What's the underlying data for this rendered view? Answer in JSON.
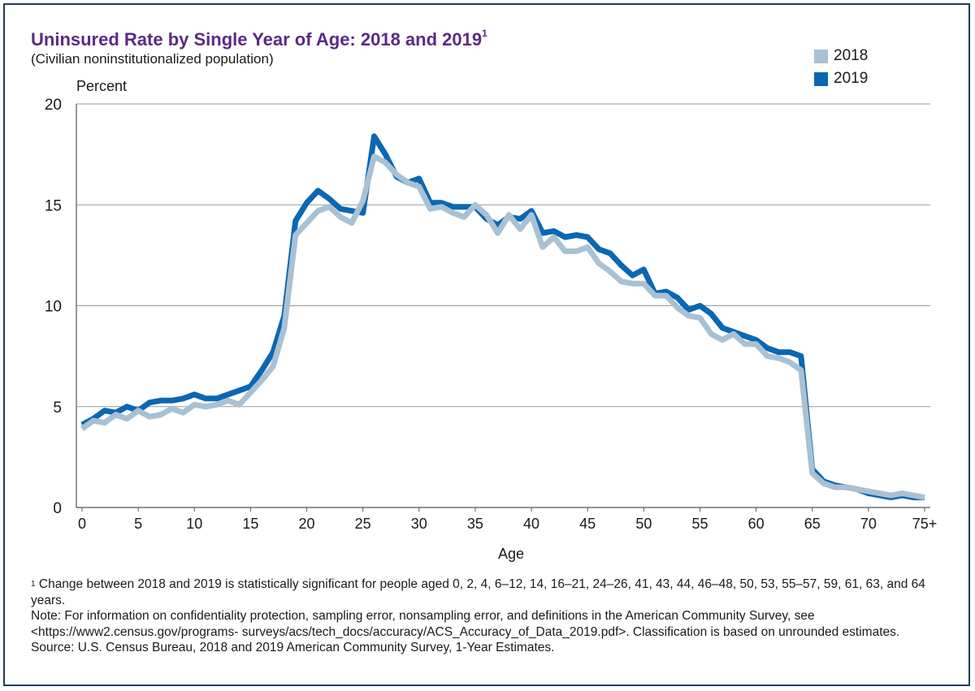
{
  "header": {
    "title": "Uninsured Rate by Single Year of Age: 2018 and 2019",
    "title_superscript": "1",
    "subtitle": "(Civilian noninstitutionalized population)"
  },
  "legend": {
    "items": [
      {
        "label": "2018",
        "color": "#a9c1d3"
      },
      {
        "label": "2019",
        "color": "#0a67b3"
      }
    ]
  },
  "chart_data": {
    "type": "line",
    "ylabel": "Percent",
    "xlabel": "Age",
    "ylim": [
      0,
      20
    ],
    "xlim": [
      0,
      75
    ],
    "yticks": [
      0,
      5,
      10,
      15,
      20
    ],
    "xticks": [
      {
        "value": 0,
        "label": "0"
      },
      {
        "value": 5,
        "label": "5"
      },
      {
        "value": 10,
        "label": "10"
      },
      {
        "value": 15,
        "label": "15"
      },
      {
        "value": 20,
        "label": "20"
      },
      {
        "value": 25,
        "label": "25"
      },
      {
        "value": 30,
        "label": "30"
      },
      {
        "value": 35,
        "label": "35"
      },
      {
        "value": 40,
        "label": "40"
      },
      {
        "value": 45,
        "label": "45"
      },
      {
        "value": 50,
        "label": "50"
      },
      {
        "value": 55,
        "label": "55"
      },
      {
        "value": 60,
        "label": "60"
      },
      {
        "value": 65,
        "label": "65"
      },
      {
        "value": 70,
        "label": "70"
      },
      {
        "value": 75,
        "label": "75+"
      }
    ],
    "grid": true,
    "legend_position": "top-right",
    "x": [
      0,
      1,
      2,
      3,
      4,
      5,
      6,
      7,
      8,
      9,
      10,
      11,
      12,
      13,
      14,
      15,
      16,
      17,
      18,
      19,
      20,
      21,
      22,
      23,
      24,
      25,
      26,
      27,
      28,
      29,
      30,
      31,
      32,
      33,
      34,
      35,
      36,
      37,
      38,
      39,
      40,
      41,
      42,
      43,
      44,
      45,
      46,
      47,
      48,
      49,
      50,
      51,
      52,
      53,
      54,
      55,
      56,
      57,
      58,
      59,
      60,
      61,
      62,
      63,
      64,
      65,
      66,
      67,
      68,
      69,
      70,
      71,
      72,
      73,
      74,
      75
    ],
    "series": [
      {
        "name": "2019",
        "color": "#0a67b3",
        "values": [
          4.1,
          4.4,
          4.8,
          4.7,
          5.0,
          4.8,
          5.2,
          5.3,
          5.3,
          5.4,
          5.6,
          5.4,
          5.4,
          5.6,
          5.8,
          6.0,
          6.8,
          7.7,
          9.5,
          14.2,
          15.1,
          15.7,
          15.3,
          14.8,
          14.7,
          14.6,
          18.4,
          17.5,
          16.4,
          16.1,
          16.3,
          15.1,
          15.1,
          14.9,
          14.9,
          14.9,
          14.3,
          14.0,
          14.4,
          14.3,
          14.7,
          13.6,
          13.7,
          13.4,
          13.5,
          13.4,
          12.8,
          12.6,
          12.0,
          11.5,
          11.8,
          10.6,
          10.7,
          10.4,
          9.8,
          10.0,
          9.6,
          8.9,
          8.7,
          8.5,
          8.3,
          7.9,
          7.7,
          7.7,
          7.5,
          1.9,
          1.3,
          1.1,
          1.0,
          0.9,
          0.7,
          0.6,
          0.5,
          0.6,
          0.5,
          0.5
        ]
      },
      {
        "name": "2018",
        "color": "#a9c1d3",
        "values": [
          3.9,
          4.3,
          4.2,
          4.6,
          4.4,
          4.8,
          4.5,
          4.6,
          4.9,
          4.7,
          5.1,
          5.0,
          5.1,
          5.3,
          5.1,
          5.7,
          6.3,
          7.0,
          8.9,
          13.5,
          14.1,
          14.7,
          14.9,
          14.4,
          14.1,
          15.2,
          17.4,
          17.1,
          16.5,
          16.1,
          15.9,
          14.8,
          14.9,
          14.6,
          14.4,
          15.0,
          14.5,
          13.6,
          14.5,
          13.8,
          14.5,
          12.9,
          13.4,
          12.7,
          12.7,
          12.9,
          12.1,
          11.7,
          11.2,
          11.1,
          11.1,
          10.5,
          10.5,
          9.9,
          9.5,
          9.4,
          8.6,
          8.3,
          8.6,
          8.1,
          8.1,
          7.5,
          7.4,
          7.2,
          6.8,
          1.7,
          1.2,
          1.0,
          1.0,
          0.9,
          0.8,
          0.7,
          0.6,
          0.7,
          0.6,
          0.5
        ]
      }
    ]
  },
  "footnotes": {
    "sup": "1",
    "note1": "Change between 2018 and 2019 is statistically significant for people aged 0, 2, 4, 6–12, 14, 16–21, 24–26, 41, 43, 44, 46–48, 50, 53, 55–57, 59, 61, 63, and 64 years.",
    "note2": "Note: For information on confidentiality protection, sampling error, nonsampling error, and definitions in the American Community Survey, see <https://www2.census.gov/programs- surveys/acs/tech_docs/accuracy/ACS_Accuracy_of_Data_2019.pdf>. Classification is based on unrounded estimates.",
    "source": "Source: U.S. Census Bureau, 2018 and 2019 American Community Survey, 1-Year Estimates."
  }
}
